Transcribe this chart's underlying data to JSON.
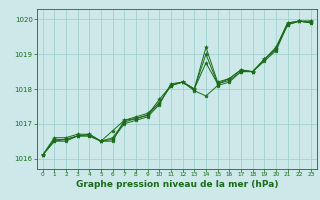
{
  "background_color": "#cce8e8",
  "grid_color": "#99cccc",
  "line_color": "#1a6b1a",
  "marker_color": "#1a6b1a",
  "xlabel": "Graphe pression niveau de la mer (hPa)",
  "xlabel_fontsize": 6.5,
  "xlim": [
    -0.5,
    23.5
  ],
  "ylim": [
    1015.7,
    1020.3
  ],
  "yticks": [
    1016,
    1017,
    1018,
    1019,
    1020
  ],
  "xticks": [
    0,
    1,
    2,
    3,
    4,
    5,
    6,
    7,
    8,
    9,
    10,
    11,
    12,
    13,
    14,
    15,
    16,
    17,
    18,
    19,
    20,
    21,
    22,
    23
  ],
  "series": [
    [
      1016.1,
      1016.6,
      1016.6,
      1016.7,
      1016.7,
      1016.5,
      1016.5,
      1017.1,
      1017.2,
      1017.3,
      1017.6,
      1018.1,
      1018.2,
      1017.95,
      1017.8,
      1018.1,
      1018.2,
      1018.5,
      1018.5,
      1018.85,
      1019.2,
      1019.9,
      1019.95,
      1019.95
    ],
    [
      1016.1,
      1016.5,
      1016.5,
      1016.65,
      1016.65,
      1016.5,
      1016.8,
      1017.1,
      1017.15,
      1017.25,
      1017.7,
      1018.1,
      1018.2,
      1018.0,
      1019.2,
      1018.2,
      1018.3,
      1018.55,
      1018.5,
      1018.85,
      1019.15,
      1019.85,
      1019.95,
      1019.9
    ],
    [
      1016.1,
      1016.5,
      1016.55,
      1016.65,
      1016.7,
      1016.5,
      1016.55,
      1017.0,
      1017.1,
      1017.2,
      1017.55,
      1018.15,
      1018.2,
      1018.0,
      1018.75,
      1018.15,
      1018.25,
      1018.5,
      1018.5,
      1018.8,
      1019.1,
      1019.85,
      1019.95,
      1019.9
    ],
    [
      1016.1,
      1016.55,
      1016.55,
      1016.65,
      1016.65,
      1016.5,
      1016.6,
      1017.05,
      1017.15,
      1017.25,
      1017.6,
      1018.1,
      1018.2,
      1018.0,
      1019.0,
      1018.15,
      1018.3,
      1018.55,
      1018.5,
      1018.85,
      1019.15,
      1019.9,
      1019.95,
      1019.95
    ]
  ]
}
